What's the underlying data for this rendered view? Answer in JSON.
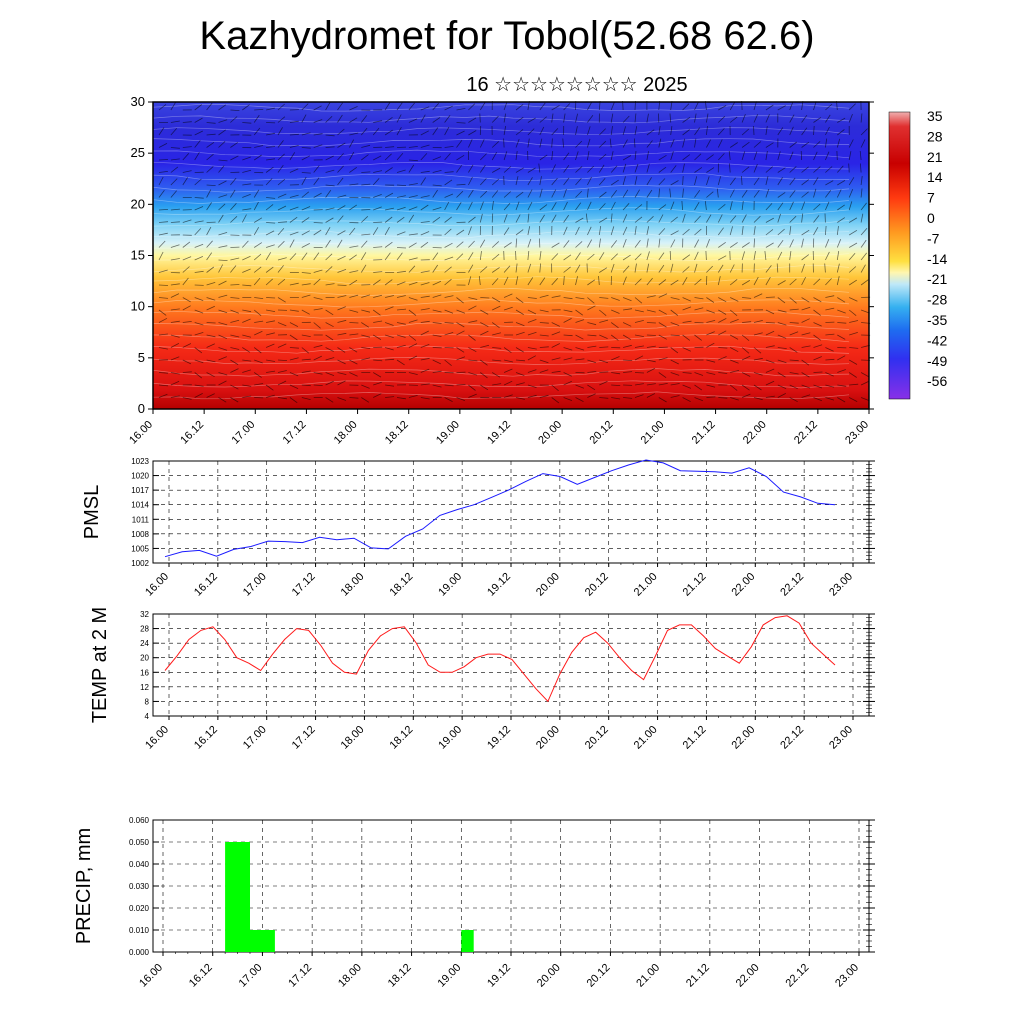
{
  "title": "Kazhydromet for Tobol(52.68 62.6)",
  "subtitle": "16 ☆☆☆☆☆☆☆☆ 2025",
  "colors": {
    "pmsl_line": "#1a1aff",
    "temp_line": "#ff1a1a",
    "precip_bar": "#00ff00"
  },
  "chart_data": [
    {
      "type": "heatmap",
      "title": "",
      "ylabel": "",
      "ylim": [
        0,
        30
      ],
      "yticks": [
        0,
        5,
        10,
        15,
        20,
        25,
        30
      ],
      "x_ticks": [
        "16.00",
        "16.12",
        "17.00",
        "17.12",
        "18.00",
        "18.12",
        "19.00",
        "19.12",
        "20.00",
        "20.12",
        "21.00",
        "21.12",
        "22.00",
        "22.12",
        "23.00"
      ],
      "colorbar_labels": [
        "35",
        "28",
        "21",
        "14",
        "7",
        "0",
        "-7",
        "-14",
        "-21",
        "-28",
        "-35",
        "-42",
        "-49",
        "-56"
      ],
      "overlay": "wind barbs"
    },
    {
      "type": "line",
      "ylabel": "PMSL",
      "ylim": [
        1002,
        1023
      ],
      "yticks": [
        1002,
        1005,
        1008,
        1011,
        1014,
        1017,
        1020,
        1023
      ],
      "x_ticks": [
        "16.00",
        "16.12",
        "17.00",
        "17.12",
        "18.00",
        "18.12",
        "19.00",
        "19.12",
        "20.00",
        "20.12",
        "21.00",
        "21.12",
        "22.00",
        "22.12",
        "23.00"
      ],
      "series": [
        {
          "values": [
            1003.3,
            1004.3,
            1004.6,
            1003.4,
            1004.8,
            1005.4,
            1006.5,
            1006.4,
            1006.2,
            1007.3,
            1006.8,
            1007.1,
            1005.1,
            1004.9,
            1007.5,
            1009.0,
            1011.8,
            1013.0,
            1014.0,
            1015.5,
            1017.0,
            1018.8,
            1020.4,
            1019.8,
            1018.2,
            1019.6,
            1021.0,
            1022.2,
            1023.2,
            1022.6,
            1021.0,
            1020.9,
            1020.8,
            1020.5,
            1021.6,
            1019.8,
            1016.6,
            1015.6,
            1014.3,
            1014.0
          ]
        }
      ]
    },
    {
      "type": "line",
      "ylabel": "TEMP at 2 M",
      "ylim": [
        4,
        32
      ],
      "yticks": [
        4,
        8,
        12,
        16,
        20,
        24,
        28,
        32
      ],
      "x_ticks": [
        "16.00",
        "16.12",
        "17.00",
        "17.12",
        "18.00",
        "18.12",
        "19.00",
        "19.12",
        "20.00",
        "20.12",
        "21.00",
        "21.12",
        "22.00",
        "22.12",
        "23.00"
      ],
      "series": [
        {
          "values": [
            16.5,
            20.5,
            25.0,
            27.5,
            28.5,
            25.0,
            20.0,
            18.5,
            16.5,
            21.0,
            25.0,
            28.0,
            27.5,
            23.5,
            18.5,
            16.0,
            15.5,
            22.0,
            26.0,
            28.0,
            28.5,
            24.0,
            18.0,
            16.0,
            16.0,
            17.5,
            20.0,
            21.0,
            21.0,
            19.5,
            15.5,
            11.5,
            8.0,
            15.5,
            21.5,
            25.5,
            27.0,
            24.0,
            20.0,
            16.5,
            14.0,
            20.5,
            27.5,
            29.0,
            29.0,
            26.0,
            22.5,
            20.5,
            18.5,
            23.0,
            29.0,
            31.0,
            31.5,
            29.5,
            24.0,
            21.0,
            18.0
          ]
        }
      ]
    },
    {
      "type": "bar",
      "ylabel": "PRECIP, mm",
      "ylim": [
        0,
        0.06
      ],
      "yticks": [
        "0.000",
        "0.010",
        "0.020",
        "0.030",
        "0.040",
        "0.050",
        "0.060"
      ],
      "x_ticks": [
        "16.00",
        "16.12",
        "17.00",
        "17.12",
        "18.00",
        "18.12",
        "19.00",
        "19.12",
        "20.00",
        "20.12",
        "21.00",
        "21.12",
        "22.00",
        "22.12",
        "23.00"
      ],
      "bars": [
        {
          "start_hour": 15,
          "end_hour": 21,
          "value": 0.05
        },
        {
          "start_hour": 21,
          "end_hour": 27,
          "value": 0.01
        },
        {
          "start_hour": 72,
          "end_hour": 75,
          "value": 0.01
        }
      ]
    }
  ]
}
